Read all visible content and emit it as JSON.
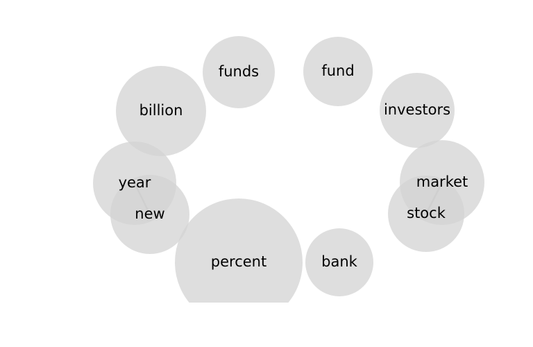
{
  "diagram": {
    "type": "word-bubble-network",
    "colors": {
      "node_fill": "#d3d3d3",
      "link_stroke": "#8a8a8a",
      "label": "#000000",
      "background": "#ffffff"
    },
    "nodes": [
      {
        "id": "funds",
        "label": "funds",
        "weight": 52
      },
      {
        "id": "fund",
        "label": "fund",
        "weight": 50
      },
      {
        "id": "billion",
        "label": "billion",
        "weight": 65
      },
      {
        "id": "investors",
        "label": "investors",
        "weight": 54
      },
      {
        "id": "year",
        "label": "year",
        "weight": 60
      },
      {
        "id": "market",
        "label": "market",
        "weight": 61
      },
      {
        "id": "new",
        "label": "new",
        "weight": 57
      },
      {
        "id": "stock",
        "label": "stock",
        "weight": 55
      },
      {
        "id": "percent",
        "label": "percent",
        "weight": 92
      },
      {
        "id": "bank",
        "label": "bank",
        "weight": 49
      }
    ],
    "links": [
      {
        "source": "year",
        "target": "new"
      },
      {
        "source": "market",
        "target": "stock"
      }
    ]
  }
}
